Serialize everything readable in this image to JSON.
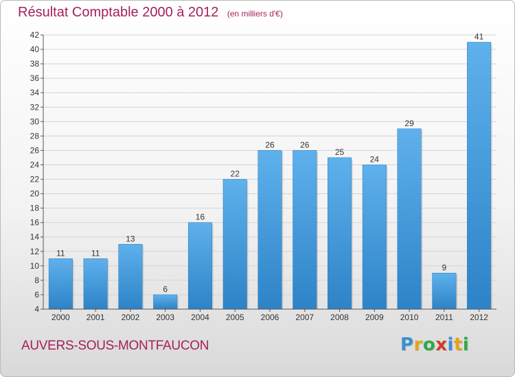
{
  "title": "Résultat Comptable 2000 à 2012",
  "unit_label": "(en milliers d'€)",
  "commune": "AUVERS-SOUS-MONTFAUCON",
  "logo": {
    "letters": [
      "P",
      "r",
      "o",
      "x",
      "i",
      "t",
      "i"
    ],
    "colors": [
      "#3a8fd4",
      "#e8a21b",
      "#2fa84a",
      "#d33a2a",
      "#3a8fd4",
      "#e8a21b",
      "#2fa84a"
    ]
  },
  "colors": {
    "bar_light": "#5fb1ec",
    "bar_dark": "#2d83c7",
    "title": "#a4205a"
  },
  "chart_data": {
    "type": "bar",
    "title": "Résultat Comptable 2000 à 2012",
    "categories": [
      "2000",
      "2001",
      "2002",
      "2003",
      "2004",
      "2005",
      "2006",
      "2007",
      "2008",
      "2009",
      "2010",
      "2011",
      "2012"
    ],
    "values": [
      11,
      11,
      13,
      6,
      16,
      22,
      26,
      26,
      25,
      24,
      29,
      9,
      41
    ],
    "data_labels": [
      "11",
      "11",
      "13",
      "6",
      "16",
      "22",
      "26",
      "26",
      "25",
      "24",
      "29",
      "9",
      "41"
    ],
    "ylim": [
      4,
      42
    ],
    "yticks": [
      4,
      6,
      8,
      10,
      12,
      14,
      16,
      18,
      20,
      22,
      24,
      26,
      28,
      30,
      32,
      34,
      36,
      38,
      40,
      42
    ],
    "grid": true,
    "xlabel": "",
    "ylabel": ""
  }
}
